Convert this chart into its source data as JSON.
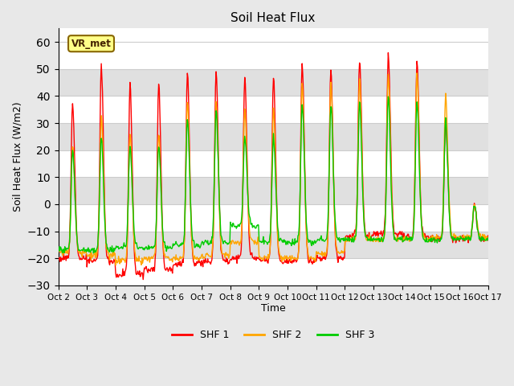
{
  "title": "Soil Heat Flux",
  "xlabel": "Time",
  "ylabel": "Soil Heat Flux (W/m2)",
  "ylim": [
    -30,
    65
  ],
  "xlim": [
    0,
    360
  ],
  "fig_bg_color": "#e8e8e8",
  "plot_bg_color": "#ffffff",
  "legend_label": "VR_met",
  "series_labels": [
    "SHF 1",
    "SHF 2",
    "SHF 3"
  ],
  "series_colors": [
    "#ff0000",
    "#ffa500",
    "#00cc00"
  ],
  "tick_labels": [
    "Oct 2",
    "Oct 3",
    "Oct 4",
    "Oct 5",
    "Oct 6",
    "Oct 7",
    "Oct 8",
    "Oct 9",
    "Oct 10",
    "Oct 11",
    "Oct 12",
    "Oct 13",
    "Oct 14",
    "Oct 15",
    "Oct 16",
    "Oct 17"
  ],
  "tick_positions": [
    0,
    24,
    48,
    72,
    96,
    120,
    144,
    168,
    192,
    216,
    240,
    264,
    288,
    312,
    336,
    360
  ],
  "day_peaks_shf1": [
    38,
    51,
    44,
    45,
    49,
    49,
    47,
    47,
    51,
    50,
    53,
    56,
    53,
    31,
    0
  ],
  "day_peaks_shf2": [
    22,
    32,
    26,
    26,
    38,
    38,
    35,
    35,
    45,
    45,
    47,
    48,
    48,
    40,
    0
  ],
  "day_peaks_shf3": [
    20,
    25,
    22,
    22,
    32,
    35,
    25,
    25,
    37,
    37,
    38,
    40,
    38,
    31,
    0
  ],
  "night_min_shf1": [
    -20,
    -21,
    -26,
    -24,
    -22,
    -21,
    -20,
    -21,
    -21,
    -20,
    -12,
    -11,
    -12,
    -13,
    -13
  ],
  "night_min_shf2": [
    -18,
    -19,
    -21,
    -20,
    -20,
    -19,
    -14,
    -20,
    -20,
    -18,
    -13,
    -13,
    -13,
    -12,
    -12
  ],
  "night_min_shf3": [
    -17,
    -17,
    -16,
    -16,
    -15,
    -14,
    -8,
    -14,
    -14,
    -13,
    -13,
    -13,
    -13,
    -13,
    -13
  ],
  "n_days": 15,
  "points_per_day": 48,
  "grid_color": "#cccccc",
  "band_color_dark": "#e0e0e0",
  "band_color_light": "#f5f5f5",
  "linewidth": 1.0
}
